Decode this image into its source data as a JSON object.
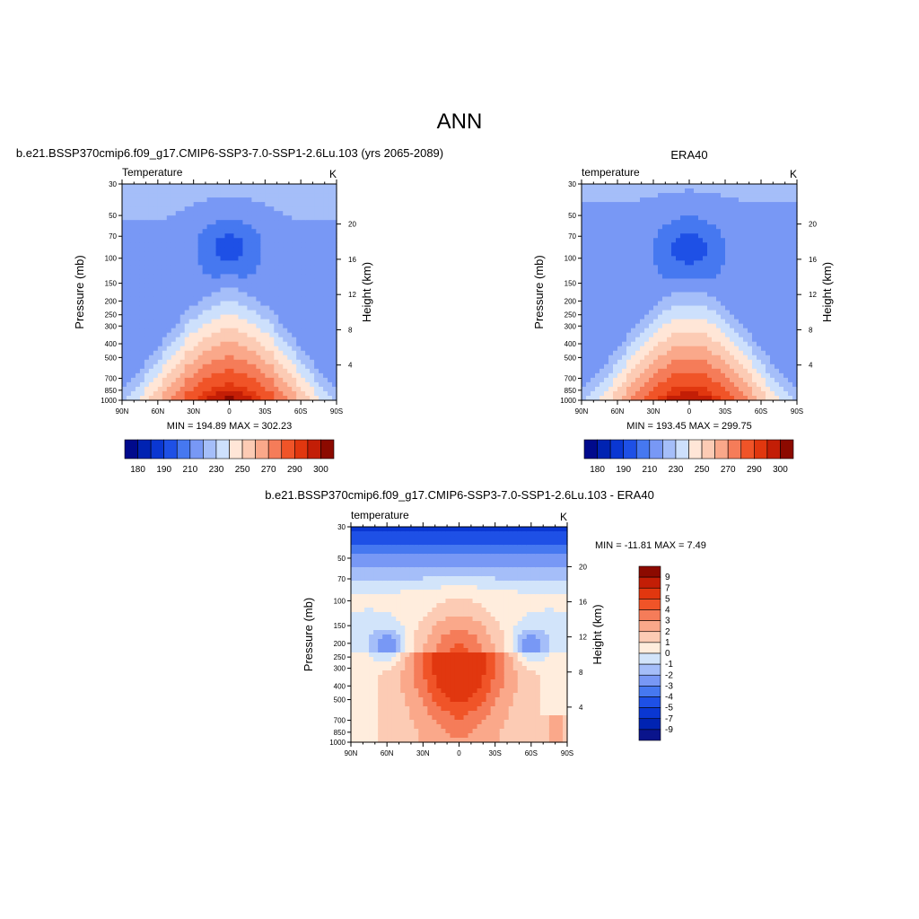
{
  "figure": {
    "title": "ANN"
  },
  "colors": {
    "temperature_scale": [
      "#000a8c",
      "#0023b2",
      "#0a37d2",
      "#1e50e6",
      "#4678f0",
      "#7898f5",
      "#a5bef9",
      "#cde0fc",
      "#ffe6d7",
      "#fccbb4",
      "#faa88a",
      "#f57c59",
      "#f05428",
      "#e1370f",
      "#c31e06",
      "#8c0a00"
    ],
    "difference_scale": [
      "#0a148c",
      "#0023b2",
      "#0a37d2",
      "#1e50e6",
      "#4678f0",
      "#7898f5",
      "#a5bef9",
      "#d2e4fa",
      "#ffeddd",
      "#fccbb4",
      "#faa88a",
      "#f57c59",
      "#f05428",
      "#e1370f",
      "#c31e06",
      "#8c0a00"
    ]
  },
  "chart_data": [
    {
      "type": "heatmap",
      "id": "model",
      "header": "b.e21.BSSP370cmip6.f09_g17.CMIP6-SSP3-7.0-SSP1-2.6Lu.103 (yrs 2065-2089)",
      "left_label": "Temperature",
      "right_label": "K",
      "xlabel": "",
      "ylabel": "Pressure (mb)",
      "ylabel_right": "Height (km)",
      "x_ticks": [
        "90N",
        "60N",
        "30N",
        "0",
        "30S",
        "60S",
        "90S"
      ],
      "y_ticks": [
        30,
        50,
        70,
        100,
        150,
        200,
        250,
        300,
        400,
        500,
        700,
        850,
        1000
      ],
      "height_ticks": [
        20,
        16,
        12,
        8,
        4
      ],
      "ylim": [
        1000,
        30
      ],
      "xlim": [
        90,
        -90
      ],
      "stats": "MIN = 194.89  MAX = 302.23",
      "colorbar_labels": [
        "180",
        "190",
        "210",
        "230",
        "250",
        "270",
        "290",
        "300"
      ],
      "levels": [
        180,
        185,
        190,
        200,
        210,
        220,
        230,
        240,
        250,
        260,
        270,
        280,
        290,
        295,
        300
      ]
    },
    {
      "type": "heatmap",
      "id": "obs",
      "header": "ERA40",
      "left_label": "temperature",
      "right_label": "K",
      "xlabel": "",
      "ylabel": "Pressure (mb)",
      "ylabel_right": "Height (km)",
      "x_ticks": [
        "90N",
        "60N",
        "30N",
        "0",
        "30S",
        "60S",
        "90S"
      ],
      "y_ticks": [
        30,
        50,
        70,
        100,
        150,
        200,
        250,
        300,
        400,
        500,
        700,
        850,
        1000
      ],
      "height_ticks": [
        20,
        16,
        12,
        8,
        4
      ],
      "ylim": [
        1000,
        30
      ],
      "xlim": [
        90,
        -90
      ],
      "stats": "MIN = 193.45  MAX = 299.75",
      "colorbar_labels": [
        "180",
        "190",
        "210",
        "230",
        "250",
        "270",
        "290",
        "300"
      ],
      "levels": [
        180,
        185,
        190,
        200,
        210,
        220,
        230,
        240,
        250,
        260,
        270,
        280,
        290,
        295,
        300
      ]
    },
    {
      "type": "heatmap",
      "id": "diff",
      "header": "b.e21.BSSP370cmip6.f09_g17.CMIP6-SSP3-7.0-SSP1-2.6Lu.103 - ERA40",
      "left_label": "temperature",
      "right_label": "K",
      "xlabel": "",
      "ylabel": "Pressure (mb)",
      "ylabel_right": "Height (km)",
      "x_ticks": [
        "90N",
        "60N",
        "30N",
        "0",
        "30S",
        "60S",
        "90S"
      ],
      "y_ticks": [
        30,
        50,
        70,
        100,
        150,
        200,
        250,
        300,
        400,
        500,
        700,
        850,
        1000
      ],
      "height_ticks": [
        20,
        16,
        12,
        8,
        4
      ],
      "ylim": [
        1000,
        30
      ],
      "xlim": [
        90,
        -90
      ],
      "stats": "MIN = -11.81  MAX =   7.49",
      "colorbar_labels": [
        "9",
        "7",
        "5",
        "4",
        "3",
        "2",
        "1",
        "0",
        "-1",
        "-2",
        "-3",
        "-4",
        "-5",
        "-7",
        "-9"
      ],
      "levels": [
        -9,
        -7,
        -5,
        -4,
        -3,
        -2,
        -1,
        0,
        1,
        2,
        3,
        4,
        5,
        7,
        9
      ]
    }
  ]
}
